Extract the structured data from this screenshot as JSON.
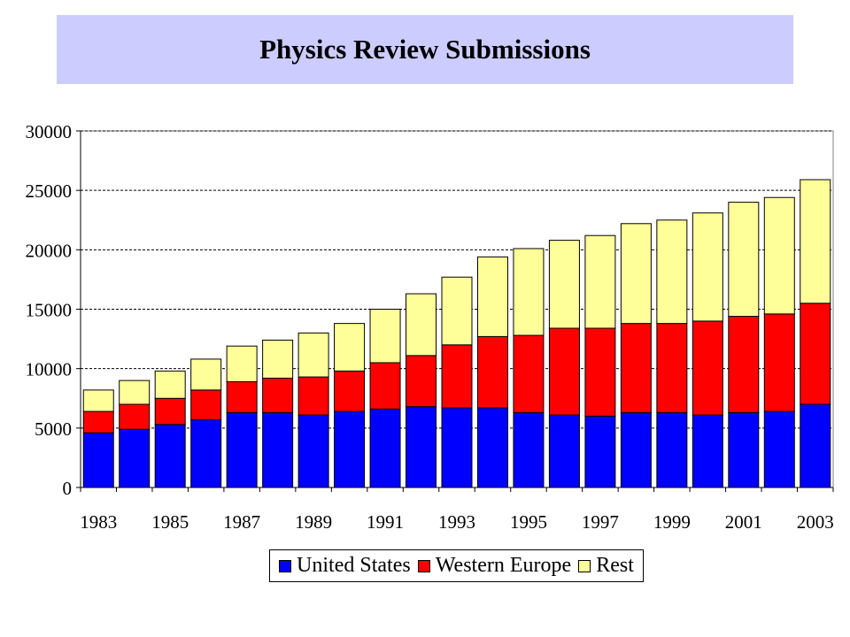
{
  "title": "Physics Review Submissions",
  "chart_data": {
    "type": "bar",
    "stacked": true,
    "categories": [
      "1983",
      "1984",
      "1985",
      "1986",
      "1987",
      "1988",
      "1989",
      "1990",
      "1991",
      "1992",
      "1993",
      "1994",
      "1995",
      "1996",
      "1997",
      "1998",
      "1999",
      "2000",
      "2001",
      "2002",
      "2003"
    ],
    "x_tick_labels": [
      "1983",
      "1985",
      "1987",
      "1989",
      "1991",
      "1993",
      "1995",
      "1997",
      "1999",
      "2001",
      "2003"
    ],
    "y_ticks": [
      "0",
      "5000",
      "10000",
      "15000",
      "20000",
      "25000",
      "30000"
    ],
    "ylim": [
      0,
      30000
    ],
    "grid": "horizontal dashed",
    "legend_position": "bottom",
    "series": [
      {
        "name": "United States",
        "color": "#0000ff",
        "values": [
          4600,
          4900,
          5300,
          5700,
          6300,
          6300,
          6100,
          6400,
          6600,
          6800,
          6700,
          6700,
          6300,
          6100,
          6000,
          6300,
          6300,
          6100,
          6300,
          6400,
          7000
        ]
      },
      {
        "name": "Western Europe",
        "color": "#ff0000",
        "values": [
          1800,
          2100,
          2200,
          2500,
          2600,
          2900,
          3200,
          3400,
          3900,
          4300,
          5300,
          6000,
          6500,
          7300,
          7400,
          7500,
          7500,
          7900,
          8100,
          8200,
          8500
        ]
      },
      {
        "name": "Rest",
        "color": "#ffff99",
        "values": [
          1800,
          2000,
          2300,
          2600,
          3000,
          3200,
          3700,
          4000,
          4500,
          5200,
          5700,
          6700,
          7300,
          7400,
          7800,
          8400,
          8700,
          9100,
          9600,
          9800,
          10400
        ]
      }
    ]
  }
}
